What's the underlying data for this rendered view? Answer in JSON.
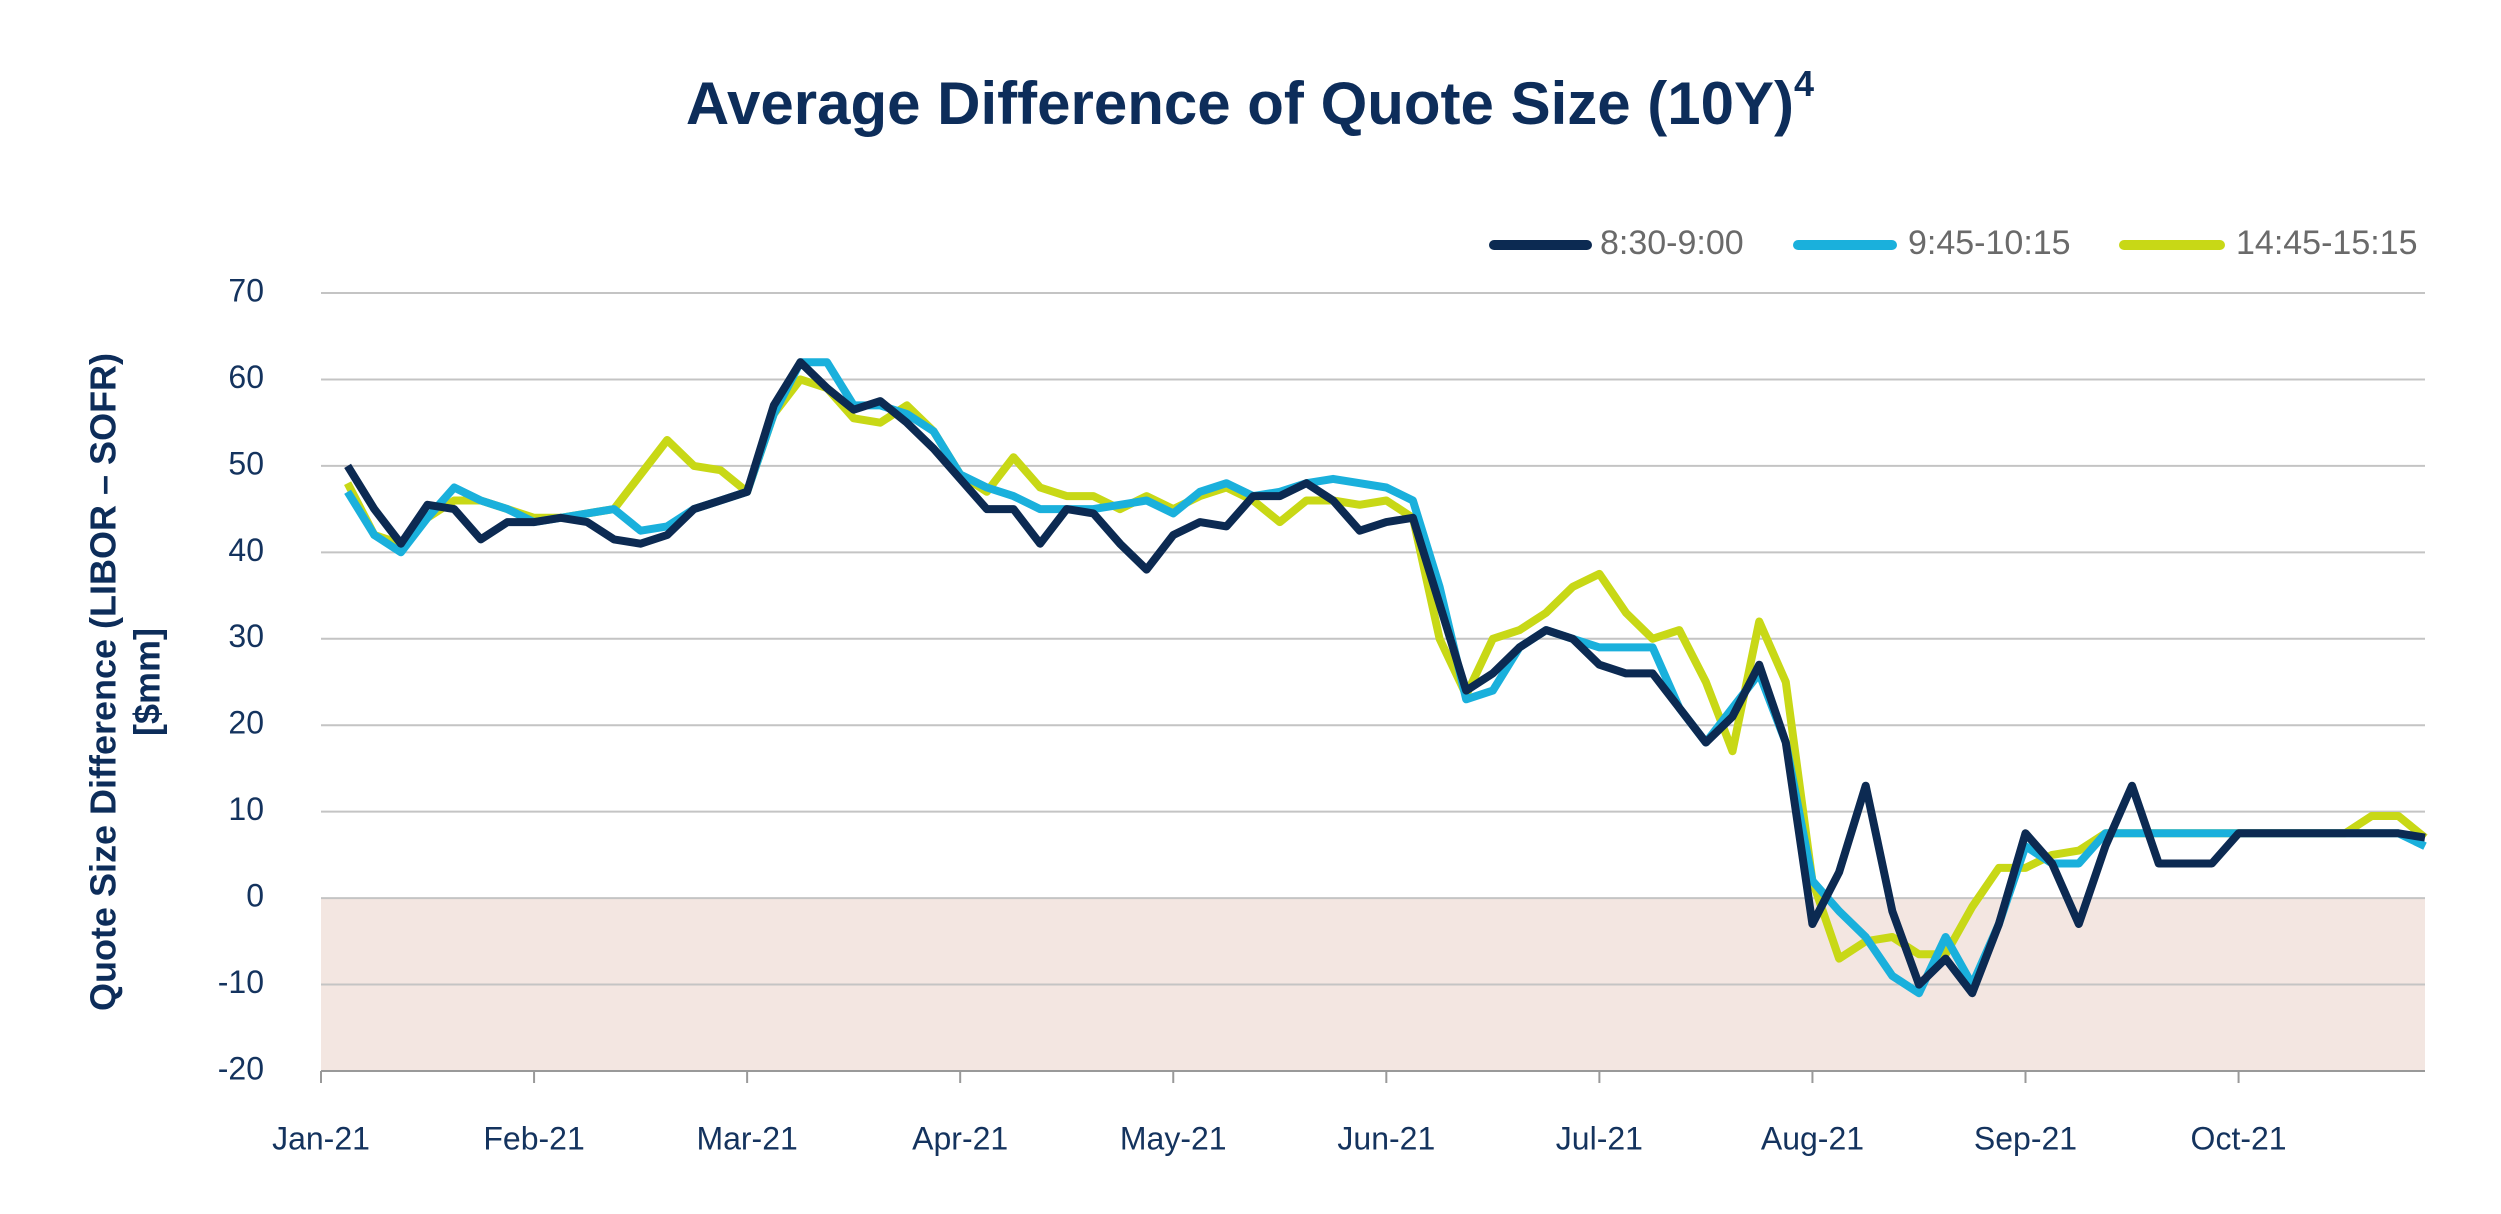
{
  "chart_data": {
    "type": "line",
    "title": "Average Difference of Quote Size (10Y)",
    "title_superscript": "4",
    "ylabel": [
      "Quote Size Difference (LIBOR – SOFR)",
      "[$mm]"
    ],
    "categories": [
      "Jan-21",
      null,
      null,
      null,
      null,
      null,
      null,
      null,
      "Feb-21",
      null,
      null,
      null,
      null,
      null,
      null,
      null,
      "Mar-21",
      null,
      null,
      null,
      null,
      null,
      null,
      null,
      "Apr-21",
      null,
      null,
      null,
      null,
      null,
      null,
      null,
      "May-21",
      null,
      null,
      null,
      null,
      null,
      null,
      null,
      "Jun-21",
      null,
      null,
      null,
      null,
      null,
      null,
      null,
      "Jul-21",
      null,
      null,
      null,
      null,
      null,
      null,
      null,
      "Aug-21",
      null,
      null,
      null,
      null,
      null,
      null,
      null,
      "Sep-21",
      null,
      null,
      null,
      null,
      null,
      null,
      null,
      "Oct-21",
      null,
      null,
      null,
      null,
      null,
      null,
      null
    ],
    "series": [
      {
        "name": "8:30-9:00",
        "color": "#0c2a52",
        "values": [
          null,
          50,
          45,
          41,
          45.5,
          45,
          41.5,
          43.5,
          43.5,
          44,
          43.5,
          41.5,
          41,
          42,
          45,
          46,
          47,
          57,
          62,
          59,
          56.5,
          57.5,
          55,
          52,
          48.5,
          45,
          45,
          41,
          45,
          44.5,
          41,
          38,
          42,
          43.5,
          43,
          46.5,
          46.5,
          48,
          46,
          42.5,
          43.5,
          44,
          34,
          24,
          26,
          29,
          31,
          30,
          27,
          26,
          26,
          22,
          18,
          21,
          27,
          18,
          -3,
          3,
          13,
          -1.5,
          -10,
          -7,
          -11,
          -3,
          7.5,
          4,
          -3,
          6,
          13,
          4,
          4,
          4,
          7.5,
          7.5,
          7.5,
          7.5,
          7.5,
          7.5,
          7.5,
          7
        ]
      },
      {
        "name": "9:45-10:15",
        "color": "#1ab0dc",
        "values": [
          null,
          47,
          42,
          40,
          44,
          47.5,
          46,
          45,
          43.5,
          44,
          44.5,
          45,
          42.5,
          43,
          45,
          46,
          47,
          56,
          62,
          62,
          57,
          57,
          56,
          54,
          49,
          47.5,
          46.5,
          45,
          45,
          45,
          45.5,
          46,
          44.5,
          47,
          48,
          46.5,
          47,
          48,
          48.5,
          48,
          47.5,
          46,
          36,
          23,
          24,
          29,
          31,
          30,
          29,
          29,
          29,
          22,
          18,
          22,
          26,
          18,
          2,
          -1.5,
          -4.5,
          -9,
          -11,
          -4.5,
          -10,
          -3,
          6,
          4,
          4,
          7.5,
          7.5,
          7.5,
          7.5,
          7.5,
          7.5,
          7.5,
          7.5,
          7.5,
          7.5,
          7.5,
          7.5,
          6
        ]
      },
      {
        "name": "14:45-15:15",
        "color": "#c8d816",
        "values": [
          null,
          48,
          42,
          41,
          44,
          46,
          46,
          45,
          44,
          44,
          44.5,
          45,
          49,
          53,
          50,
          49.5,
          47,
          56,
          60,
          59,
          55.5,
          55,
          57,
          54,
          49,
          47,
          51,
          47.5,
          46.5,
          46.5,
          45,
          46.5,
          45,
          46.5,
          47.5,
          46,
          43.5,
          46,
          46,
          45.5,
          46,
          44,
          30,
          23.5,
          30,
          31,
          33,
          36,
          37.5,
          33,
          30,
          31,
          25,
          17,
          32,
          25,
          2,
          -7,
          -5,
          -4.5,
          -6.5,
          -6.5,
          -1,
          3.5,
          3.5,
          5,
          5.5,
          7.5,
          7.5,
          7.5,
          7.5,
          7.5,
          7.5,
          7.5,
          7.5,
          7.5,
          7.5,
          9.5,
          9.5,
          7
        ]
      }
    ],
    "ylim": [
      -20,
      70
    ],
    "yticks": [
      -20,
      -10,
      0,
      10,
      20,
      30,
      40,
      50,
      60,
      70
    ],
    "grid": true,
    "legend": "top-right",
    "negative_band_color": "#f3e6e1"
  }
}
